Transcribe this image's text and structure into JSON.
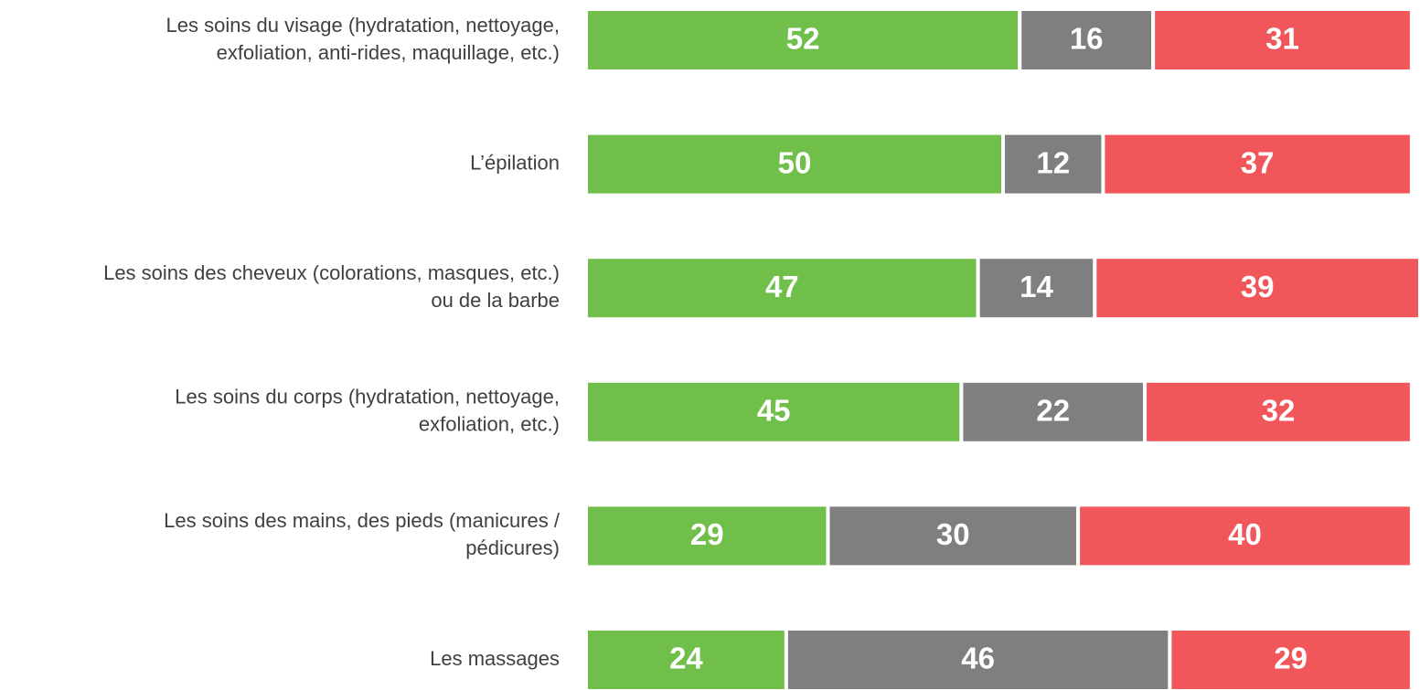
{
  "chart_data": {
    "type": "stacked-bar-horizontal",
    "categories": [
      [
        "Les soins du visage (hydratation, nettoyage,",
        "exfoliation, anti-rides, maquillage, etc.)"
      ],
      [
        "L’épilation"
      ],
      [
        "Les soins des cheveux (colorations, masques, etc.)",
        "ou de la barbe"
      ],
      [
        "Les soins du corps (hydratation, nettoyage,",
        "exfoliation, etc.)"
      ],
      [
        "Les soins des mains, des pieds (manicures /",
        "pédicures)"
      ],
      [
        "Les massages"
      ]
    ],
    "series": [
      {
        "color": "#70bf4b",
        "values": [
          52,
          50,
          47,
          45,
          29,
          24
        ]
      },
      {
        "color": "#7f7f7f",
        "values": [
          16,
          12,
          14,
          22,
          30,
          46
        ]
      },
      {
        "color": "#f0565a",
        "values": [
          31,
          37,
          39,
          32,
          40,
          29
        ]
      }
    ],
    "xlim": [
      0,
      100
    ]
  }
}
